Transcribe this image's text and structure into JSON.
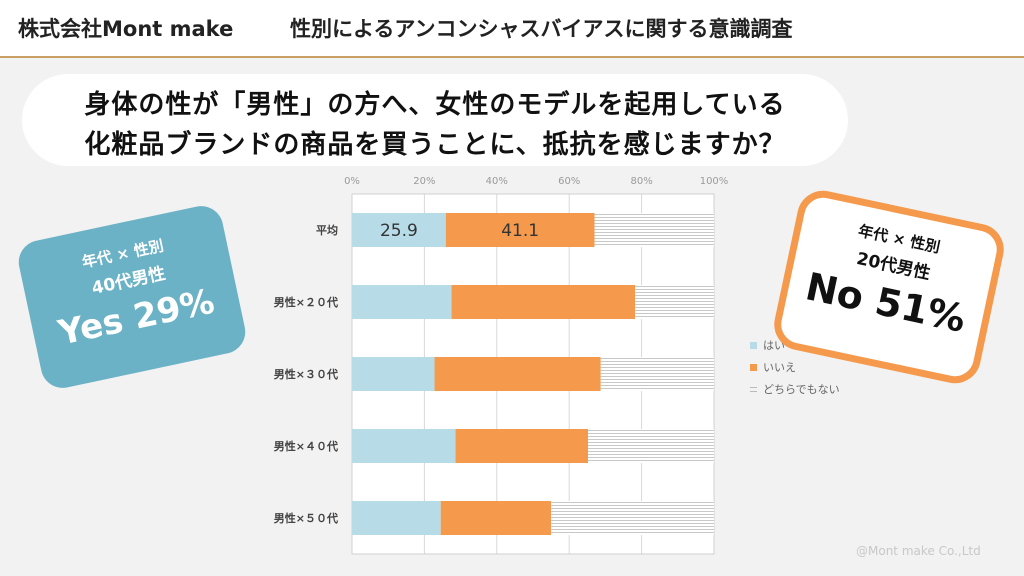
{
  "header": {
    "company": "株式会社Mont make",
    "title": "性別によるアンコンシャスバイアスに関する意識調査"
  },
  "question": {
    "line1": "身体の性が「男性」の方へ、女性のモデルを起用している",
    "line2": "化粧品ブランドの商品を買うことに、抵抗を感じますか？"
  },
  "callout_yes": {
    "label_top": "年代 × 性別",
    "label_group": "40代男性",
    "value": "Yes 29%"
  },
  "callout_no": {
    "label_top": "年代 × 性別",
    "label_group": "20代男性",
    "value": "No 51%"
  },
  "legend": {
    "yes_label": "はい",
    "no_label": "いいえ",
    "neither_label": "どちらでもない"
  },
  "copyright": "@Mont make Co.,Ltd",
  "colors": {
    "yes": "#b7dce8",
    "no": "#f59a4c",
    "neither_hatch": "#c8c8c8",
    "accent_blue": "#6cb2c6",
    "accent_gold": "#c9a063"
  },
  "chart_data": {
    "type": "bar",
    "orientation": "horizontal",
    "stacked": true,
    "xlim": [
      0,
      100
    ],
    "x_ticks": [
      "0%",
      "20%",
      "40%",
      "60%",
      "80%",
      "100%"
    ],
    "categories": [
      "平均",
      "男性×２０代",
      "男性×３０代",
      "男性×４０代",
      "男性×５０代"
    ],
    "series": [
      {
        "name": "はい",
        "values": [
          25.9,
          27.5,
          22.8,
          28.6,
          24.5
        ]
      },
      {
        "name": "いいえ",
        "values": [
          41.1,
          50.7,
          45.9,
          36.6,
          30.5
        ]
      },
      {
        "name": "どちらでもない",
        "values": [
          33.0,
          21.8,
          31.3,
          34.8,
          45.0
        ]
      }
    ],
    "data_labels": {
      "平均": [
        "25.9",
        "41.1",
        ""
      ]
    },
    "grid": true,
    "legend_position": "right"
  }
}
